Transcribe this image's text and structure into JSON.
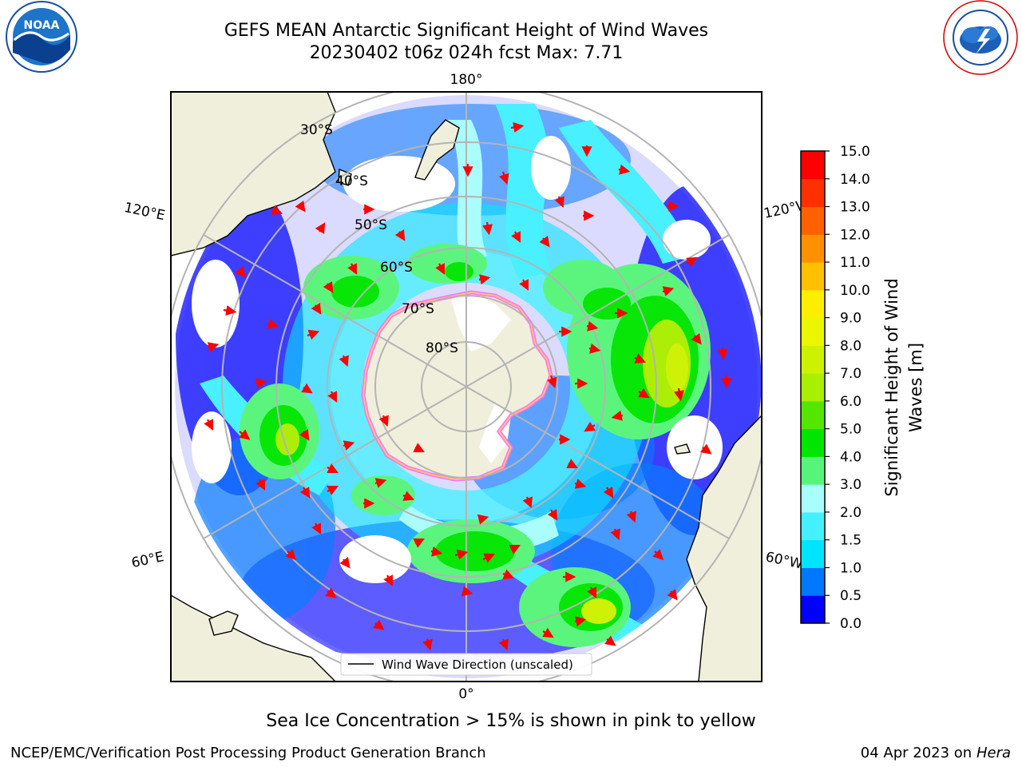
{
  "header": {
    "title": "GEFS MEAN Antarctic Significant Height of Wind Waves",
    "subtitle": "20230402 t06z 024h fcst   Max: 7.71"
  },
  "logos": {
    "left": {
      "name": "noaa-logo",
      "text": "NOAA",
      "ring_text": "NATIONAL OCEANIC AND ATMOSPHERIC ADMINISTRATION · U.S. DEPARTMENT OF COMMERCE"
    },
    "right": {
      "name": "nws-logo",
      "ring_text": "NATIONAL WEATHER SERVICE"
    }
  },
  "map": {
    "projection": "south-polar-stereographic",
    "lat_labels": [
      "30°S",
      "40°S",
      "50°S",
      "60°S",
      "70°S",
      "80°S"
    ],
    "lon_labels": {
      "top": "180°",
      "upper_left": "120°E",
      "upper_right": "120°W",
      "lower_left": "60°E",
      "lower_right": "60°W",
      "bottom": "0°"
    },
    "legend_text": "Wind Wave Direction (unscaled)",
    "arrow_color": "#ff0000",
    "land_color": "#efefdc",
    "ice_colors": [
      "#ff66ff",
      "#ffcc66",
      "#ffff99"
    ]
  },
  "colorbar": {
    "label": "Significant Height of Wind Waves [m]",
    "label_line1": "Significant Height of Wind",
    "label_line2": "Waves [m]",
    "ticks": [
      "0.0",
      "0.5",
      "1.0",
      "1.5",
      "2.0",
      "3.0",
      "4.0",
      "5.0",
      "6.0",
      "7.0",
      "8.0",
      "9.0",
      "10.0",
      "11.0",
      "12.0",
      "13.0",
      "14.0",
      "15.0"
    ],
    "colors": [
      "#0000ff",
      "#0077ff",
      "#00e5ff",
      "#44f0ff",
      "#a8fdfd",
      "#56f57a",
      "#00e600",
      "#55e600",
      "#aaee00",
      "#ccf200",
      "#eaf700",
      "#ffee00",
      "#ffc000",
      "#ff9000",
      "#ff6000",
      "#ff3000",
      "#ff0000"
    ]
  },
  "footer": {
    "note": "Sea Ice Concentration > 15% is shown in pink to yellow",
    "credit_left": "NCEP/EMC/Verification Post Processing Product Generation Branch",
    "date": "04 Apr 2023 on",
    "machine": "Hera"
  }
}
